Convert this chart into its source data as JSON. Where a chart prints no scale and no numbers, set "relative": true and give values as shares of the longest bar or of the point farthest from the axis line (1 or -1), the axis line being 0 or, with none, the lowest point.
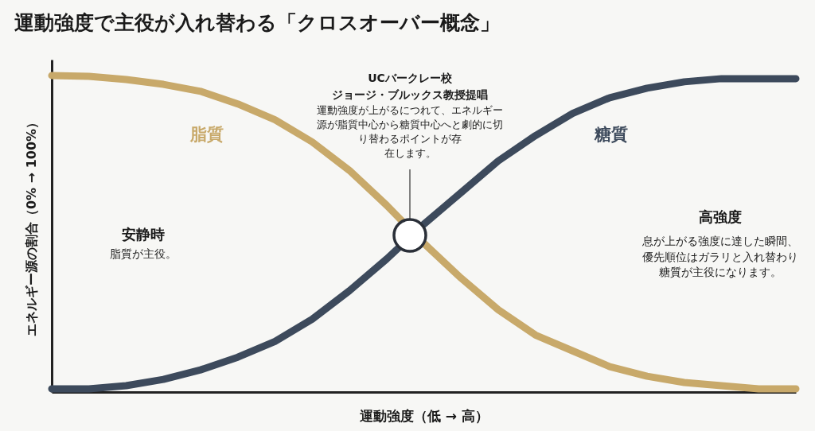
{
  "chart_data": {
    "type": "line",
    "title": "運動強度で主役が入れ替わる「クロスオーバー概念」",
    "xlabel": "運動強度（低 → 高）",
    "ylabel": "エネルギー源の割合（0% → 100%）",
    "relative": true,
    "categories": [
      null,
      null,
      null,
      null,
      null,
      null,
      null,
      null,
      null,
      null,
      null,
      null,
      null,
      null,
      null,
      null,
      null,
      null,
      null,
      null,
      null
    ],
    "series": [
      {
        "name": "脂質",
        "color": "#c8a96a",
        "values": [
          1.0,
          0.997,
          0.987,
          0.972,
          0.95,
          0.91,
          0.86,
          0.79,
          0.7,
          0.59,
          0.47,
          0.36,
          0.26,
          0.18,
          0.13,
          0.08,
          0.05,
          0.03,
          0.02,
          0.01,
          0.01
        ]
      },
      {
        "name": "糖質",
        "color": "#3d4a5c",
        "values": [
          0.01,
          0.01,
          0.02,
          0.04,
          0.07,
          0.11,
          0.16,
          0.23,
          0.32,
          0.42,
          0.53,
          0.63,
          0.73,
          0.81,
          0.88,
          0.93,
          0.96,
          0.98,
          0.99,
          0.99,
          0.99
        ]
      }
    ],
    "annotations": [
      "UCバークレー校",
      "ジョージ・ブルックス教授提唱",
      "運動強度が上がるにつれて、エネルギー源が脂質中心から糖質中心へと劇的に切り替わるポイントが存在します。",
      "安静時",
      "脂質が主役。",
      "高強度",
      "息が上がる強度に達した瞬間、優先順位はガラリと入れ替わり糖質が主役になります。"
    ],
    "grid": false,
    "marker": "none",
    "line_style": "solid"
  }
}
